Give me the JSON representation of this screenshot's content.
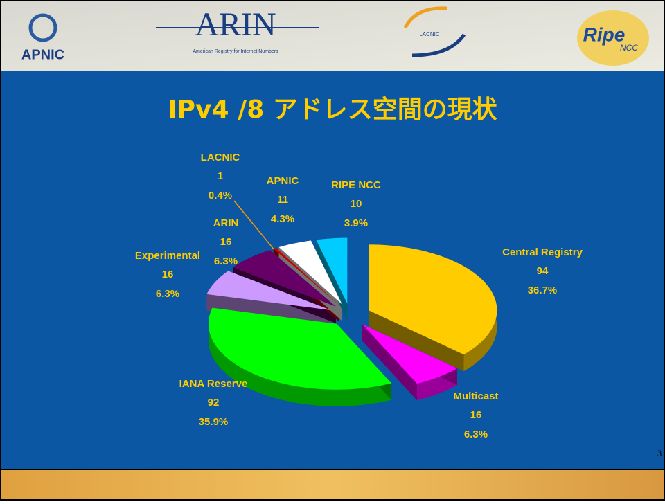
{
  "header": {
    "logos": [
      "APNIC",
      "ARIN",
      "American Registry for Internet Numbers",
      "LACNIC",
      "Ripe",
      "NCC"
    ]
  },
  "chart_data": {
    "type": "pie",
    "title": "IPv4 /8 アドレス空間の現状",
    "categories": [
      "Central Registry",
      "Multicast",
      "IANA Reserve",
      "Experimental",
      "ARIN",
      "LACNIC",
      "APNIC",
      "RIPE NCC"
    ],
    "values": [
      94,
      16,
      92,
      16,
      16,
      1,
      11,
      10
    ],
    "percent_labels": [
      "36.7%",
      "6.3%",
      "35.9%",
      "6.3%",
      "6.3%",
      "0.4%",
      "4.3%",
      "3.9%"
    ],
    "colors": [
      "#ffcc00",
      "#ff00ff",
      "#00ff00",
      "#cc99ff",
      "#660066",
      "#cc0000",
      "#ffffff",
      "#00ccff"
    ],
    "exploded": true,
    "three_d": true
  },
  "footer": {
    "page_number": "3"
  }
}
